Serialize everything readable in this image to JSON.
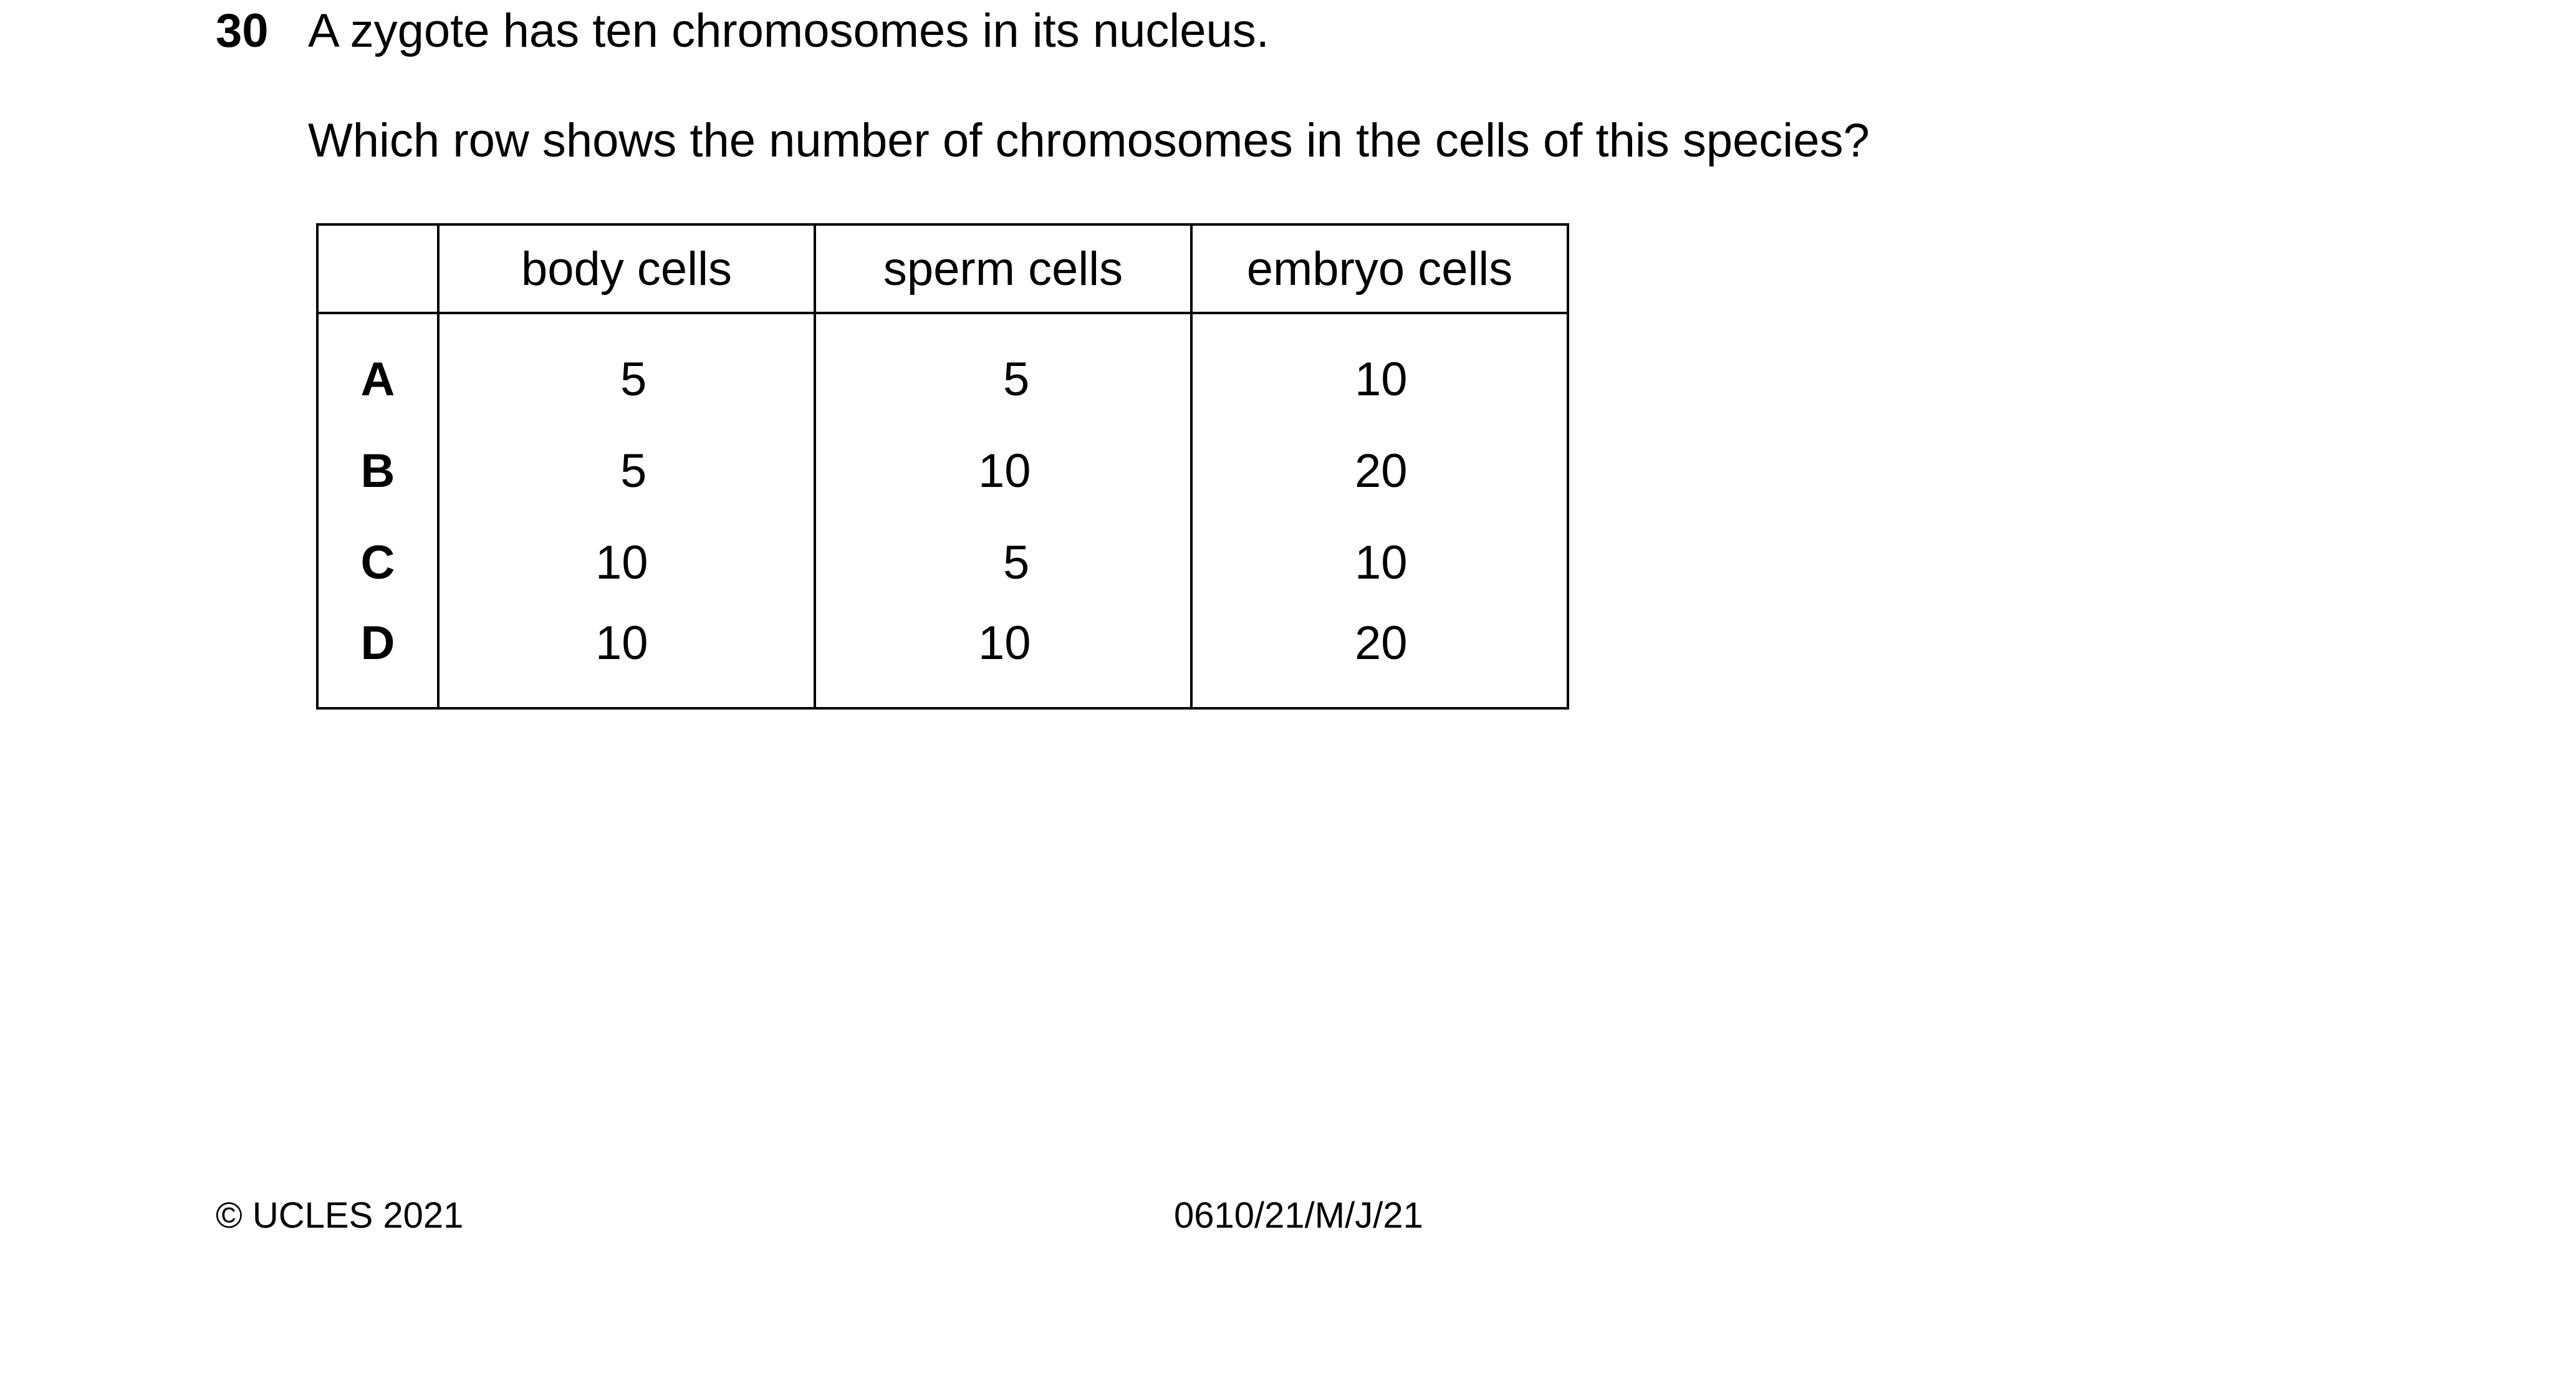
{
  "question": {
    "number": "30",
    "line1": "A zygote has ten chromosomes in its nucleus.",
    "line2": "Which row shows the number of chromosomes in the cells of this species?"
  },
  "table": {
    "headers": [
      "",
      "body cells",
      "sperm cells",
      "embryo cells"
    ],
    "rows": [
      {
        "key": "A",
        "body": "5",
        "sperm": "5",
        "embryo": "10"
      },
      {
        "key": "B",
        "body": "5",
        "sperm": "10",
        "embryo": "20"
      },
      {
        "key": "C",
        "body": "10",
        "sperm": "5",
        "embryo": "10"
      },
      {
        "key": "D",
        "body": "10",
        "sperm": "10",
        "embryo": "20"
      }
    ]
  },
  "footer": {
    "copyright": "© UCLES 2021",
    "paper_code": "0610/21/M/J/21"
  }
}
